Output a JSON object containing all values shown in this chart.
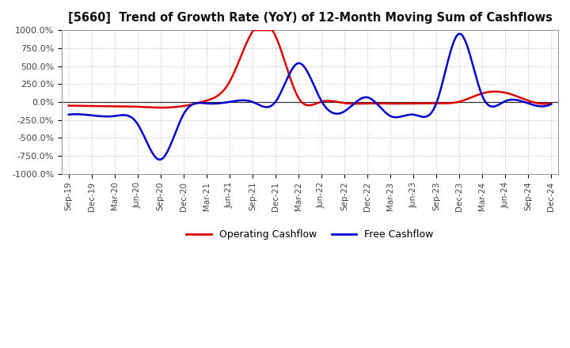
{
  "title": "[5660]  Trend of Growth Rate (YoY) of 12-Month Moving Sum of Cashflows",
  "ylim": [
    -1000,
    1000
  ],
  "yticks": [
    -1000,
    -750,
    -500,
    -250,
    0,
    250,
    500,
    750,
    1000
  ],
  "background_color": "#ffffff",
  "grid_color": "#bbbbbb",
  "operating_color": "#dd0000",
  "free_color": "#0000cc",
  "x_labels": [
    "Sep-19",
    "Dec-19",
    "Mar-20",
    "Jun-20",
    "Sep-20",
    "Dec-20",
    "Mar-21",
    "Jun-21",
    "Sep-21",
    "Dec-21",
    "Mar-22",
    "Jun-22",
    "Sep-22",
    "Dec-22",
    "Mar-23",
    "Jun-23",
    "Sep-23",
    "Dec-23",
    "Mar-24",
    "Jun-24",
    "Sep-24",
    "Dec-24"
  ],
  "operating_cashflow": [
    -50,
    -55,
    -58,
    -65,
    -78,
    -55,
    20,
    280,
    980,
    920,
    60,
    5,
    -15,
    -20,
    -22,
    -20,
    -18,
    5,
    120,
    130,
    20,
    -15
  ],
  "free_cashflow": [
    -175,
    -185,
    -195,
    -305,
    -800,
    -170,
    -20,
    2,
    2,
    2,
    540,
    15,
    -130,
    65,
    -195,
    -175,
    -18,
    950,
    85,
    12,
    -18,
    -28
  ]
}
